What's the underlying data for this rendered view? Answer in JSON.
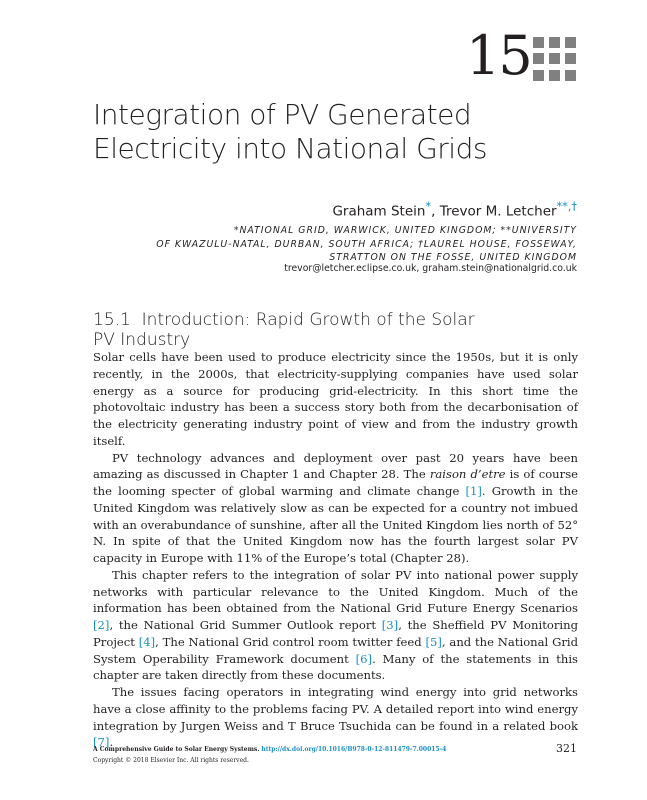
{
  "chapter_number": "15",
  "title_lines": [
    "Integration of PV Generated",
    "Electricity into National Grids"
  ],
  "authors": {
    "author1": "Graham Stein",
    "mark1": "*",
    "sep": ", ",
    "author2": "Trevor M. Letcher",
    "mark2": "**,†"
  },
  "affiliation_lines": [
    "*NATIONAL GRID, WARWICK, UNITED KINGDOM; **UNIVERSITY",
    "OF KWAZULU-NATAL, DURBAN, SOUTH AFRICA; †LAUREL HOUSE, FOSSEWAY,",
    "STRATTON ON THE FOSSE, UNITED KINGDOM"
  ],
  "emails": "trevor@letcher.eclipse.co.uk,  graham.stein@nationalgrid.co.uk",
  "section_heading": {
    "number": "15.1",
    "lines": [
      "Introduction: Rapid Growth of the Solar",
      "PV Industry"
    ]
  },
  "paragraphs": [
    [
      {
        "t": "Solar cells have been used to produce electricity since the 1950s, but it is only recently, in the 2000s, that electricity-supplying companies have used solar energy as a source for producing grid-electricity. In this short time the photovoltaic industry has been a success story both from the decarbonisation of the electricity generating industry point of view and from the industry growth itself."
      }
    ],
    [
      {
        "t": "PV technology advances and deployment over past 20 years have been amazing as discussed in Chapter 1 and Chapter 28. The "
      },
      {
        "t": "raison d’etre",
        "i": true
      },
      {
        "t": " is of course the looming specter of global warming and climate change "
      },
      {
        "t": "[1]",
        "c": true
      },
      {
        "t": ". Growth in the United Kingdom was relatively slow as can be expected for a country not imbued with an overabundance of sunshine, after all the United Kingdom lies north of 52° N. In spite of that the United Kingdom now has the fourth largest solar PV capacity in Europe with 11% of the Europe’s total (Chapter 28)."
      }
    ],
    [
      {
        "t": "This chapter refers to the integration of solar PV into national power supply networks with particular relevance to the United Kingdom. Much of the information has been obtained from the National Grid Future Energy Scenarios "
      },
      {
        "t": "[2]",
        "c": true
      },
      {
        "t": ", the National Grid Summer Outlook report "
      },
      {
        "t": "[3]",
        "c": true
      },
      {
        "t": ", the Sheffield PV Monitoring Project "
      },
      {
        "t": "[4]",
        "c": true
      },
      {
        "t": ", The National Grid control room twitter feed "
      },
      {
        "t": "[5]",
        "c": true
      },
      {
        "t": ", and the National Grid System Operability Framework document "
      },
      {
        "t": "[6]",
        "c": true
      },
      {
        "t": ". Many of the statements in this chapter are taken directly from these documents."
      }
    ],
    [
      {
        "t": "The issues facing operators in integrating wind energy into grid networks have a close affinity to the problems facing PV. A detailed report into wind energy integration by Jurgen Weiss and T Bruce Tsuchida can be found in a related book "
      },
      {
        "t": "[7]",
        "c": true
      },
      {
        "t": "."
      }
    ]
  ],
  "footer": {
    "book": "A Comprehensive Guide to Solar Energy Systems.",
    "doi": "http://dx.doi.org/10.1016/B978-0-12-811479-7.00015-4",
    "copyright": "Copyright © 2018 Elsevier Inc. All rights reserved.",
    "page_number": "321"
  },
  "colors": {
    "link": "#1a8fc8",
    "text": "#231f20",
    "chapter_grid": "#808080"
  }
}
